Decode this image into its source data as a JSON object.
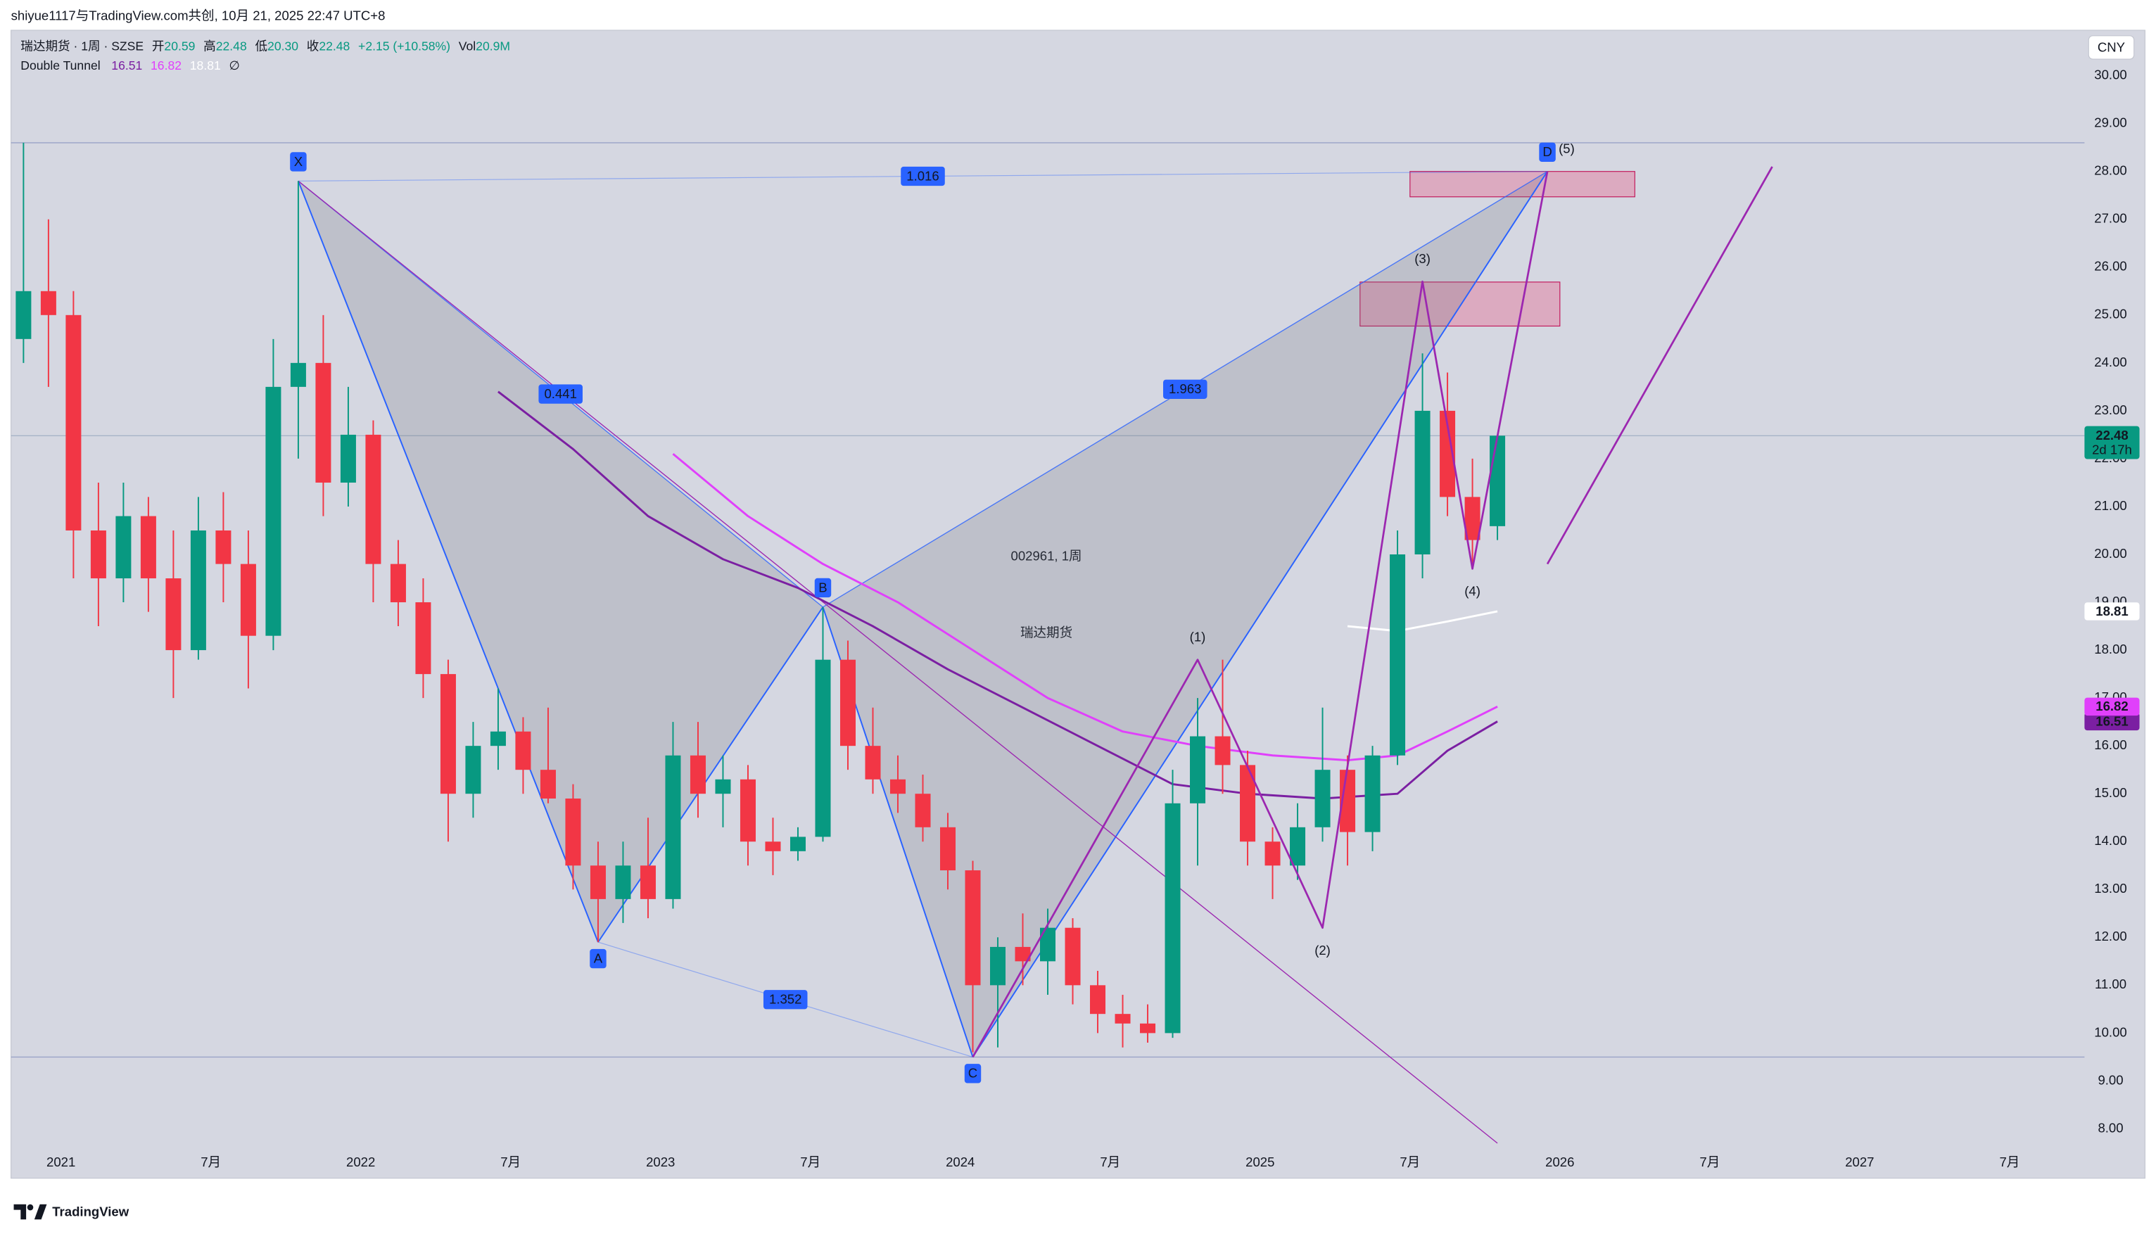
{
  "header": "shiyue1117与TradingView.com共创, 10月 21, 2025 22:47 UTC+8",
  "legend": {
    "symbol": "瑞达期货 · 1周 · SZSE",
    "open_label": "开",
    "open": "20.59",
    "high_label": "高",
    "high": "22.48",
    "low_label": "低",
    "low": "20.30",
    "close_label": "收",
    "close": "22.48",
    "change": "+2.15 (+10.58%)",
    "volume_label": "Vol",
    "volume": "20.9M",
    "indicator": "Double Tunnel",
    "indicator_flag": "∅"
  },
  "watermark": {
    "symbol": "002961, 1周",
    "name": "瑞达期货"
  },
  "price_axis": {
    "currency": "CNY",
    "countdown": "2d 17h"
  },
  "footer": {
    "brand": "TradingView"
  },
  "chart_data": {
    "type": "candlestick",
    "x": [
      "2020-11",
      "2020-12",
      "2021-01",
      "2021-02",
      "2021-03",
      "2021-04",
      "2021-05",
      "2021-06",
      "2021-07",
      "2021-08",
      "2021-09",
      "2021-10",
      "2021-11",
      "2021-12",
      "2022-01",
      "2022-02",
      "2022-03",
      "2022-04",
      "2022-05",
      "2022-06",
      "2022-07",
      "2022-08",
      "2022-09",
      "2022-10",
      "2022-11",
      "2022-12",
      "2023-01",
      "2023-02",
      "2023-03",
      "2023-04",
      "2023-05",
      "2023-06",
      "2023-07",
      "2023-08",
      "2023-09",
      "2023-10",
      "2023-11",
      "2023-12",
      "2024-01",
      "2024-02",
      "2024-03",
      "2024-04",
      "2024-05",
      "2024-06",
      "2024-07",
      "2024-08",
      "2024-09",
      "2024-10",
      "2024-11",
      "2024-12",
      "2025-01",
      "2025-02",
      "2025-03",
      "2025-04",
      "2025-05",
      "2025-06",
      "2025-07",
      "2025-08",
      "2025-09",
      "2025-10"
    ],
    "open": [
      24.5,
      25.5,
      25.0,
      20.5,
      19.5,
      20.8,
      19.5,
      18.0,
      20.5,
      19.8,
      18.3,
      23.5,
      24.0,
      21.5,
      22.5,
      19.8,
      19.0,
      17.5,
      15.0,
      16.0,
      16.3,
      15.5,
      14.9,
      13.5,
      12.8,
      13.5,
      12.8,
      15.8,
      15.0,
      15.3,
      14.0,
      13.8,
      14.1,
      17.8,
      16.0,
      15.3,
      15.0,
      14.3,
      13.4,
      11.0,
      11.8,
      11.5,
      12.2,
      11.0,
      10.4,
      10.2,
      10.0,
      14.8,
      16.2,
      15.6,
      14.0,
      13.5,
      14.3,
      15.5,
      14.2,
      15.8,
      20.0,
      23.0,
      21.2,
      20.59
    ],
    "high": [
      28.6,
      27.0,
      25.5,
      21.5,
      21.5,
      21.2,
      20.5,
      21.2,
      21.3,
      20.5,
      24.5,
      27.8,
      25.0,
      23.5,
      22.8,
      20.3,
      19.5,
      17.8,
      16.5,
      17.2,
      16.6,
      16.8,
      15.2,
      14.0,
      14.0,
      14.5,
      16.5,
      16.5,
      15.8,
      15.6,
      14.5,
      14.3,
      18.9,
      18.2,
      16.8,
      15.8,
      15.4,
      14.6,
      13.6,
      12.0,
      12.5,
      12.6,
      12.4,
      11.3,
      10.8,
      10.6,
      15.5,
      17.0,
      17.8,
      15.9,
      14.3,
      14.8,
      16.8,
      15.8,
      16.0,
      20.5,
      24.2,
      23.8,
      22.0,
      22.48
    ],
    "low": [
      24.0,
      23.5,
      19.5,
      18.5,
      19.0,
      18.8,
      17.0,
      17.8,
      19.0,
      17.2,
      18.0,
      22.0,
      20.8,
      21.0,
      19.0,
      18.5,
      17.0,
      14.0,
      14.5,
      15.5,
      15.0,
      14.8,
      13.0,
      11.9,
      12.3,
      12.4,
      12.6,
      14.5,
      14.3,
      13.5,
      13.3,
      13.6,
      14.0,
      15.5,
      15.0,
      14.6,
      14.0,
      13.0,
      9.6,
      9.7,
      11.0,
      10.8,
      10.6,
      10.0,
      9.7,
      9.8,
      9.9,
      13.5,
      15.0,
      13.5,
      12.8,
      13.2,
      14.0,
      13.5,
      13.8,
      15.6,
      19.5,
      20.8,
      19.7,
      20.3
    ],
    "close": [
      25.5,
      25.0,
      20.5,
      19.5,
      20.8,
      19.5,
      18.0,
      20.5,
      19.8,
      18.3,
      23.5,
      24.0,
      21.5,
      22.5,
      19.8,
      19.0,
      17.5,
      15.0,
      16.0,
      16.3,
      15.5,
      14.9,
      13.5,
      12.8,
      13.5,
      12.8,
      15.8,
      15.0,
      15.3,
      14.0,
      13.8,
      14.1,
      17.8,
      16.0,
      15.3,
      15.0,
      14.3,
      13.4,
      11.0,
      11.8,
      11.5,
      12.2,
      11.0,
      10.4,
      10.2,
      10.0,
      14.8,
      16.2,
      15.6,
      14.0,
      13.5,
      14.3,
      15.5,
      14.2,
      15.8,
      20.0,
      23.0,
      21.2,
      20.3,
      22.48
    ],
    "up_color": "#089981",
    "down_color": "#f23645",
    "xlim": [
      "2020-11",
      "2027-10"
    ],
    "xticks": [
      {
        "value": "2021-01",
        "label": "2021"
      },
      {
        "value": "2021-07",
        "label": "7月"
      },
      {
        "value": "2022-01",
        "label": "2022"
      },
      {
        "value": "2022-07",
        "label": "7月"
      },
      {
        "value": "2023-01",
        "label": "2023"
      },
      {
        "value": "2023-07",
        "label": "7月"
      },
      {
        "value": "2024-01",
        "label": "2024"
      },
      {
        "value": "2024-07",
        "label": "7月"
      },
      {
        "value": "2025-01",
        "label": "2025"
      },
      {
        "value": "2025-07",
        "label": "7月"
      },
      {
        "value": "2026-01",
        "label": "2026"
      },
      {
        "value": "2026-07",
        "label": "7月"
      },
      {
        "value": "2027-01",
        "label": "2027"
      },
      {
        "value": "2027-07",
        "label": "7月"
      }
    ],
    "ylim": [
      7.6,
      30.95
    ],
    "yticks": [
      {
        "value": 8,
        "label": "8.00"
      },
      {
        "value": 9,
        "label": "9.00"
      },
      {
        "value": 10,
        "label": "10.00"
      },
      {
        "value": 11,
        "label": "11.00"
      },
      {
        "value": 12,
        "label": "12.00"
      },
      {
        "value": 13,
        "label": "13.00"
      },
      {
        "value": 14,
        "label": "14.00"
      },
      {
        "value": 15,
        "label": "15.00"
      },
      {
        "value": 16,
        "label": "16.00"
      },
      {
        "value": 17,
        "label": "17.00"
      },
      {
        "value": 18,
        "label": "18.00"
      },
      {
        "value": 19,
        "label": "19.00"
      },
      {
        "value": 20,
        "label": "20.00"
      },
      {
        "value": 21,
        "label": "21.00"
      },
      {
        "value": 22,
        "label": "22.00"
      },
      {
        "value": 23,
        "label": "23.00"
      },
      {
        "value": 24,
        "label": "24.00"
      },
      {
        "value": 25,
        "label": "25.00"
      },
      {
        "value": 26,
        "label": "26.00"
      },
      {
        "value": 27,
        "label": "27.00"
      },
      {
        "value": 28,
        "label": "28.00"
      },
      {
        "value": 29,
        "label": "29.00"
      },
      {
        "value": 30,
        "label": "30.00"
      }
    ],
    "grid": false,
    "series": [
      {
        "color": "#7b1fa2",
        "x": [
          "2022-06",
          "2022-09",
          "2022-12",
          "2023-03",
          "2023-06",
          "2023-09",
          "2023-12",
          "2024-03",
          "2024-06",
          "2024-09",
          "2024-12",
          "2025-03",
          "2025-06",
          "2025-08",
          "2025-10"
        ],
        "values": [
          23.4,
          22.2,
          20.8,
          19.9,
          19.3,
          18.5,
          17.6,
          16.8,
          16.0,
          15.2,
          15.0,
          14.9,
          15.0,
          15.9,
          16.51
        ]
      },
      {
        "color": "#e040fb",
        "x": [
          "2023-01",
          "2023-04",
          "2023-07",
          "2023-10",
          "2024-01",
          "2024-04",
          "2024-07",
          "2024-10",
          "2025-01",
          "2025-04",
          "2025-06",
          "2025-08",
          "2025-10"
        ],
        "values": [
          22.1,
          20.8,
          19.8,
          19.0,
          18.0,
          17.0,
          16.3,
          16.0,
          15.8,
          15.7,
          15.8,
          16.3,
          16.82
        ]
      },
      {
        "color": "#ffffff",
        "x": [
          "2025-04",
          "2025-06",
          "2025-08",
          "2025-10"
        ],
        "values": [
          18.5,
          18.4,
          18.6,
          18.81
        ]
      }
    ],
    "drawings": {
      "levels": [
        28.6,
        9.5
      ],
      "pattern": {
        "color": "#2962ff",
        "labels": [
          "X",
          "A",
          "B",
          "C",
          "D"
        ],
        "x": [
          "2021-10",
          "2022-10",
          "2023-07",
          "2024-01",
          "2025-12"
        ],
        "y": [
          27.8,
          11.9,
          18.9,
          9.5,
          28.0
        ],
        "ratios": [
          1.016,
          0.441,
          1.963,
          1.352
        ]
      },
      "waves": {
        "color": "#9c27b0",
        "labels": [
          null,
          "(1)",
          "(2)",
          "(3)",
          "(4)",
          "(5)"
        ],
        "x": [
          "2024-01",
          "2024-10",
          "2025-03",
          "2025-07",
          "2025-09",
          "2025-12"
        ],
        "y": [
          9.5,
          17.8,
          12.2,
          25.7,
          19.7,
          28.0
        ]
      },
      "projection": {
        "color": "#9c27b0",
        "x": [
          "2025-12",
          "2026-09"
        ],
        "y": [
          19.8,
          28.1
        ]
      },
      "trendline": {
        "color": "#9c27b0",
        "x": [
          "2021-10",
          "2025-10"
        ],
        "y": [
          27.8,
          7.7
        ]
      },
      "boxes": [
        {
          "color": "#e57399",
          "x": [
            "2025-07",
            "2026-04"
          ],
          "y": [
            28.0,
            27.47
          ]
        },
        {
          "color": "#e57399",
          "x": [
            "2025-05",
            "2026-01"
          ],
          "y": [
            25.69,
            24.77
          ]
        }
      ]
    }
  }
}
